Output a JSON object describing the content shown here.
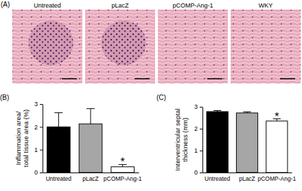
{
  "panels": {
    "labels": [
      "(A)",
      "(B)",
      "(C)"
    ],
    "images": [
      "Untreated",
      "pLacZ",
      "pCOMP-Ang-1",
      "WKY"
    ]
  },
  "chart_data": [
    {
      "type": "bar",
      "ylabel": [
        "Inflammation area/",
        "total tissue area (%)"
      ],
      "categories": [
        "Untreated",
        "pLacZ",
        "pCOMP-Ang-1"
      ],
      "values": [
        2.0,
        2.13,
        0.25
      ],
      "errors": [
        0.62,
        0.67,
        0.1
      ],
      "colors": [
        "#000000",
        "#a6a6a6",
        "#ffffff"
      ],
      "ylim": [
        0,
        3
      ],
      "yticks": [
        0,
        1,
        2,
        3
      ],
      "annotations": [
        {
          "text": "*",
          "category": "pCOMP-Ang-1"
        }
      ]
    },
    {
      "type": "bar",
      "ylabel": [
        "Interventricular septal",
        "thickness (mm)"
      ],
      "categories": [
        "Untreated",
        "pLacZ",
        "pCOMP-Ang-1"
      ],
      "values": [
        2.78,
        2.72,
        2.35
      ],
      "errors": [
        0.05,
        0.05,
        0.1
      ],
      "colors": [
        "#000000",
        "#a6a6a6",
        "#ffffff"
      ],
      "ylim": [
        0,
        3
      ],
      "yticks": [
        0,
        1,
        2,
        3
      ],
      "annotations": [
        {
          "text": "*",
          "category": "pCOMP-Ang-1"
        }
      ]
    }
  ]
}
